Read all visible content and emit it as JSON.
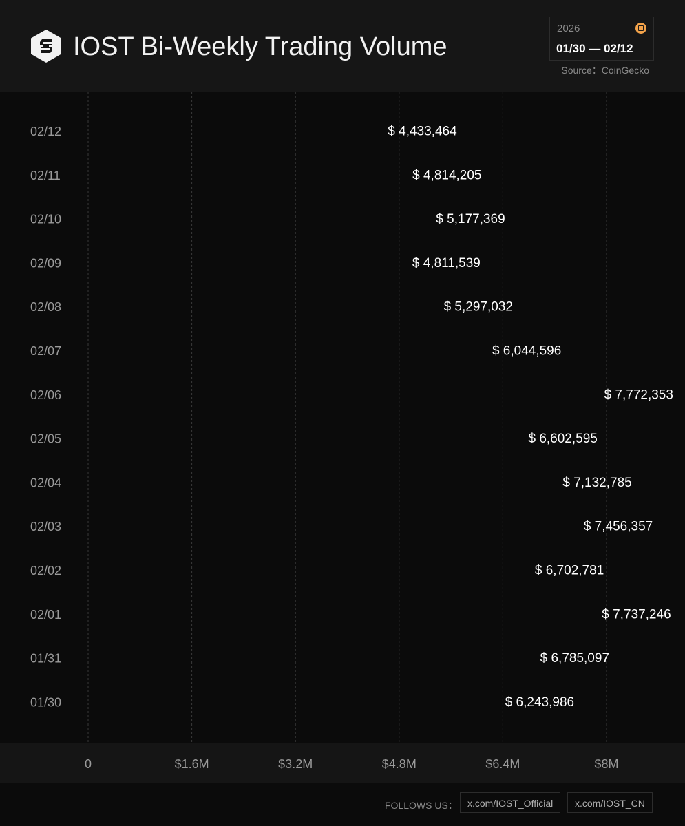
{
  "header": {
    "title": "IOST Bi-Weekly Trading Volume",
    "year": "2026",
    "range": "01/30 — 02/12",
    "source": "Source：CoinGecko",
    "logo_icon": "iost-logo-icon",
    "calendar_icon": "calendar-icon",
    "accent_color": "#f2a24a"
  },
  "footer": {
    "label": "FOLLOWS US：",
    "links": [
      "x.com/IOST_Official",
      "x.com/IOST_CN"
    ]
  },
  "chart_data": {
    "type": "bar",
    "orientation": "horizontal",
    "title": "IOST Bi-Weekly Trading Volume",
    "categories": [
      "02/12",
      "02/11",
      "02/10",
      "02/09",
      "02/08",
      "02/07",
      "02/06",
      "02/05",
      "02/04",
      "02/03",
      "02/02",
      "02/01",
      "01/31",
      "01/30"
    ],
    "values": [
      4433464,
      4814205,
      5177369,
      4811539,
      5297032,
      6044596,
      7772353,
      6602595,
      7132785,
      7456357,
      6702781,
      7737246,
      6785097,
      6243986
    ],
    "value_labels": [
      "$ 4,433,464",
      "$ 4,814,205",
      "$ 5,177,369",
      "$ 4,811,539",
      "$ 5,297,032",
      "$ 6,044,596",
      "$ 7,772,353",
      "$ 6,602,595",
      "$ 7,132,785",
      "$ 7,456,357",
      "$ 6,702,781",
      "$ 7,737,246",
      "$ 6,785,097",
      "$ 6,243,986"
    ],
    "xlim": [
      0,
      8000000
    ],
    "x_ticks": [
      0,
      1600000,
      3200000,
      4800000,
      6400000,
      8000000
    ],
    "x_tick_labels": [
      "0",
      "$1.6M",
      "$3.2M",
      "$4.8M",
      "$6.4M",
      "$8M"
    ],
    "grid": true,
    "bar_gradient": [
      "#4a4a4a",
      "#f0f0f0"
    ]
  }
}
